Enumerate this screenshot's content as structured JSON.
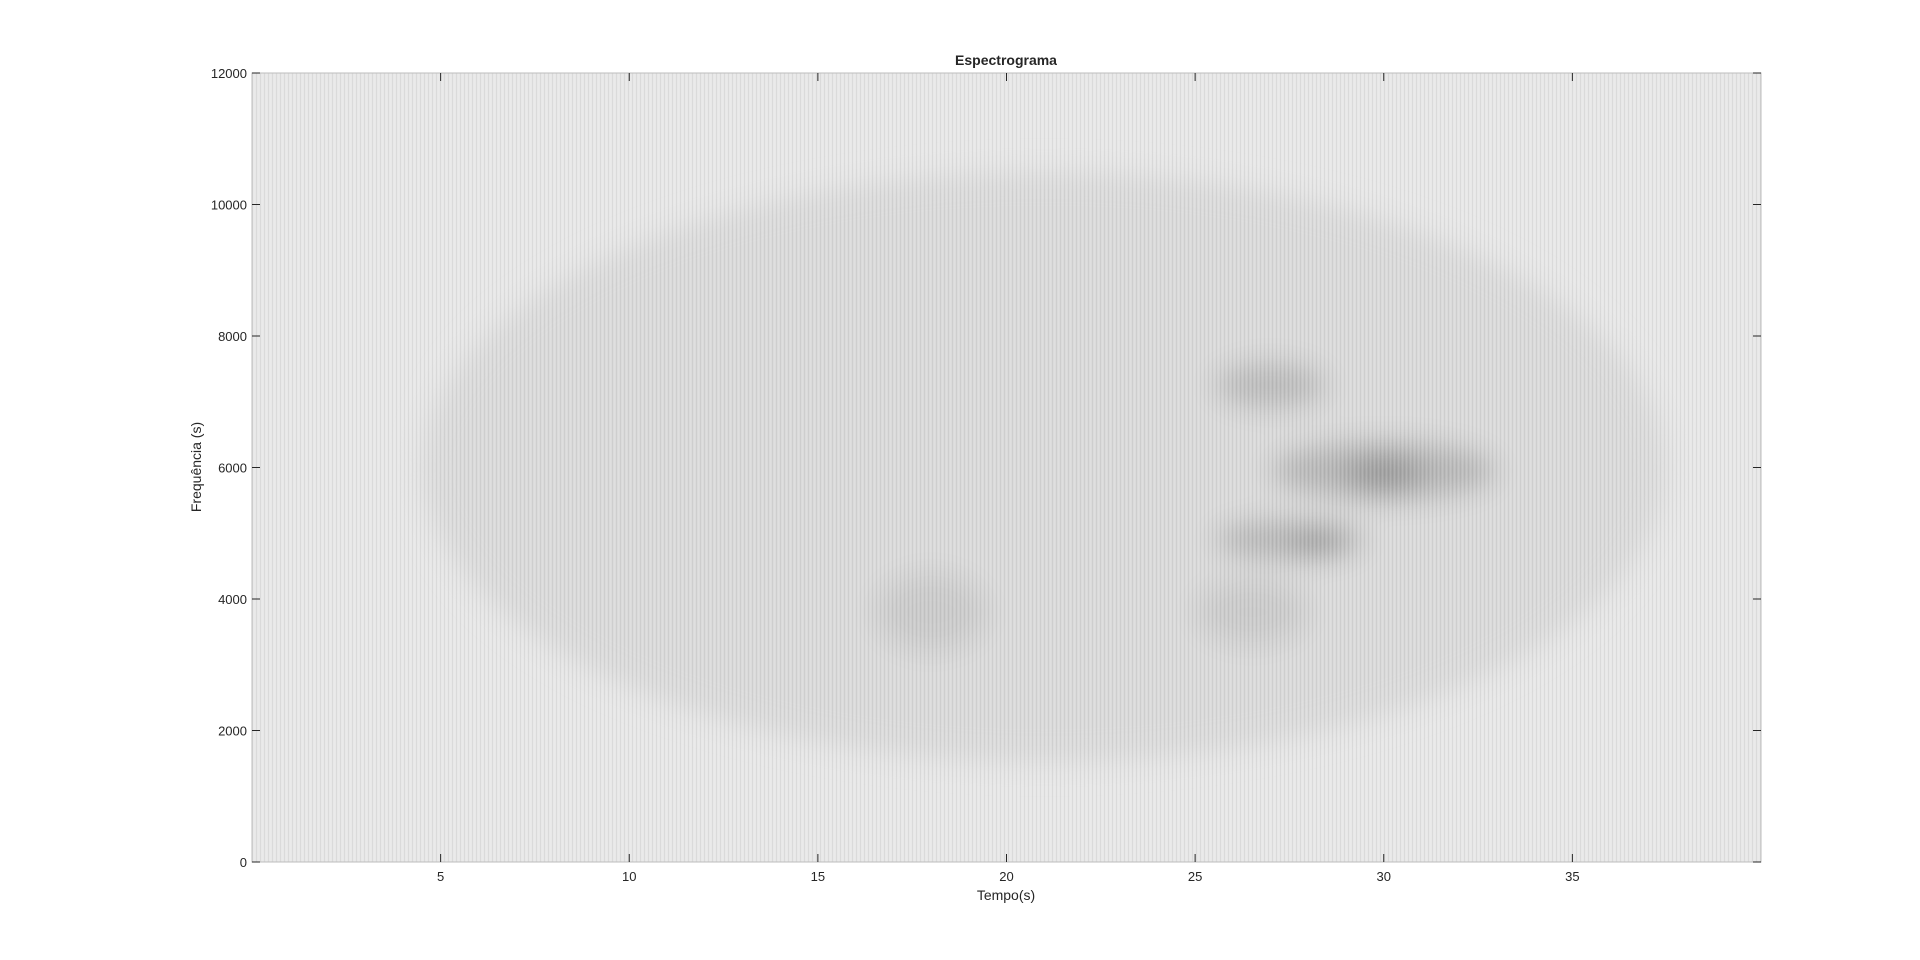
{
  "chart_data": {
    "type": "heatmap",
    "title": "Espectrograma",
    "xlabel": "Tempo(s)",
    "ylabel": "Frequência (s)",
    "xlim": [
      0,
      40
    ],
    "ylim": [
      0,
      12000
    ],
    "xticks": [
      5,
      10,
      15,
      20,
      25,
      30,
      35
    ],
    "yticks": [
      0,
      2000,
      4000,
      6000,
      8000,
      10000,
      12000
    ],
    "colormap": "gray",
    "grid": false,
    "background_level": 0.91,
    "regions": [
      {
        "t": [
          4.5,
          37.5
        ],
        "f": [
          1500,
          10500
        ],
        "level": 0.86
      },
      {
        "t": [
          16.5,
          19.5
        ],
        "f": [
          3200,
          4400
        ],
        "level": 0.8
      },
      {
        "t": [
          25.5,
          28.5
        ],
        "f": [
          6900,
          7600
        ],
        "level": 0.74
      },
      {
        "t": [
          27,
          33
        ],
        "f": [
          5500,
          6400
        ],
        "level": 0.72
      },
      {
        "t": [
          29,
          31
        ],
        "f": [
          5600,
          6200
        ],
        "level": 0.62
      },
      {
        "t": [
          25.5,
          29.5
        ],
        "f": [
          4600,
          5200
        ],
        "level": 0.72
      },
      {
        "t": [
          27.5,
          29
        ],
        "f": [
          4700,
          5000
        ],
        "level": 0.6
      },
      {
        "t": [
          25,
          28
        ],
        "f": [
          3300,
          4300
        ],
        "level": 0.8
      }
    ]
  }
}
